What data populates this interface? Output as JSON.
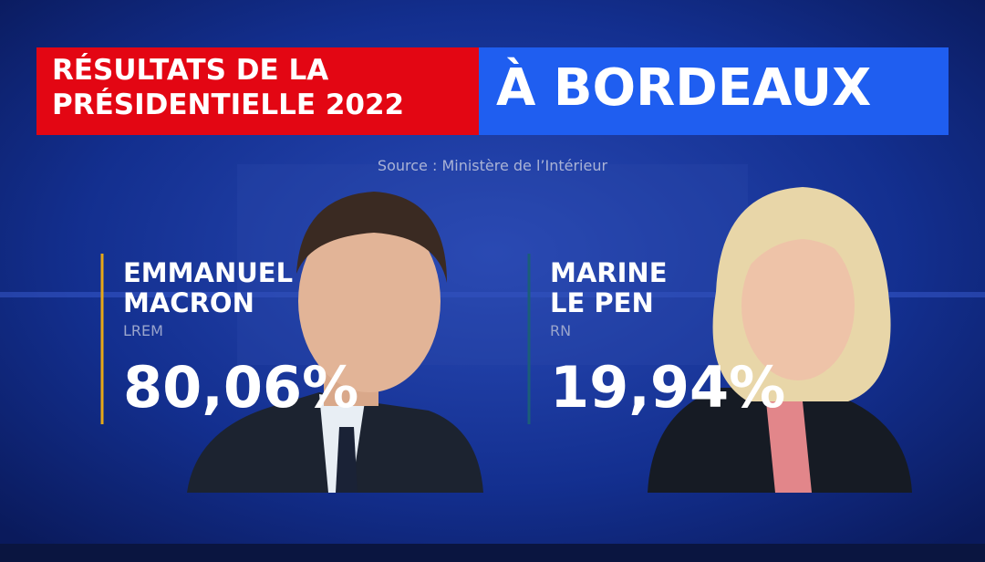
{
  "header": {
    "title_lines": [
      "RÉSULTATS DE LA",
      "PRÉSIDENTIELLE 2022"
    ],
    "location": "À BORDEAUX"
  },
  "source": "Source : Ministère de l’Intérieur",
  "candidates": [
    {
      "name_lines": [
        "EMMANUEL",
        "MACRON"
      ],
      "party": "LREM",
      "result": "80,06%"
    },
    {
      "name_lines": [
        "MARINE",
        "LE PEN"
      ],
      "party": "RN",
      "result": "19,94%"
    }
  ]
}
